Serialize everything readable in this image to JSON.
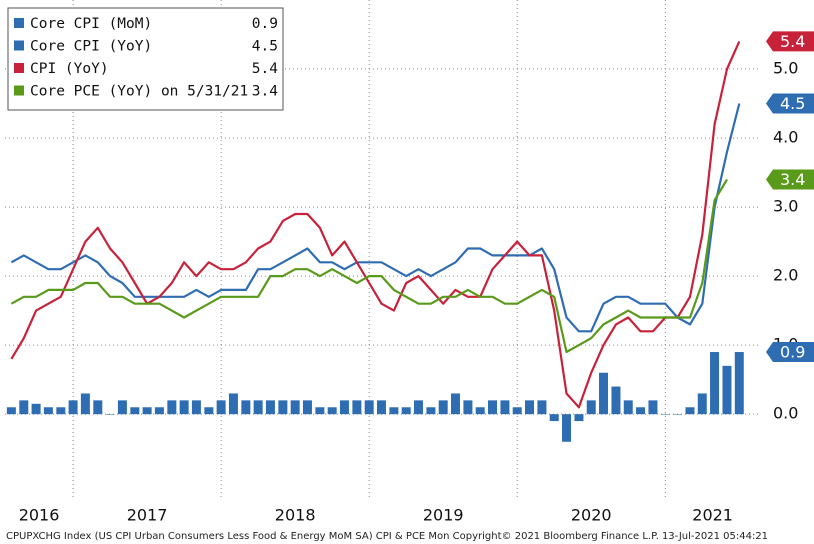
{
  "chart_data": {
    "type": "line",
    "footer": "CPUPXCHG Index (US CPI Urban Consumers Less Food & Energy MoM SA) CPI & PCE  Mon  Copyright© 2021 Bloomberg Finance L.P.  13-Jul-2021 05:44:21",
    "xlim": [
      2016.54,
      2021.64
    ],
    "xticks": [
      2016,
      2017,
      2018,
      2019,
      2020,
      2021
    ],
    "ylim": [
      -1.2,
      6.0
    ],
    "yticks": [
      {
        "value": 0,
        "label": "0.0"
      },
      {
        "value": 1,
        "label": "1.0"
      },
      {
        "value": 2,
        "label": "2.0"
      },
      {
        "value": 3,
        "label": "3.0"
      },
      {
        "value": 4,
        "label": "4.0"
      },
      {
        "value": 5,
        "label": "5.0"
      }
    ],
    "grid": true,
    "legend": "upper left",
    "x": [
      2016.583,
      2016.667,
      2016.75,
      2016.833,
      2016.917,
      2017.0,
      2017.083,
      2017.167,
      2017.25,
      2017.333,
      2017.417,
      2017.5,
      2017.583,
      2017.667,
      2017.75,
      2017.833,
      2017.917,
      2018.0,
      2018.083,
      2018.167,
      2018.25,
      2018.333,
      2018.417,
      2018.5,
      2018.583,
      2018.667,
      2018.75,
      2018.833,
      2018.917,
      2019.0,
      2019.083,
      2019.167,
      2019.25,
      2019.333,
      2019.417,
      2019.5,
      2019.583,
      2019.667,
      2019.75,
      2019.833,
      2019.917,
      2020.0,
      2020.083,
      2020.167,
      2020.25,
      2020.333,
      2020.417,
      2020.5,
      2020.583,
      2020.667,
      2020.75,
      2020.833,
      2020.917,
      2021.0,
      2021.083,
      2021.167,
      2021.25,
      2021.333,
      2021.417,
      2021.5
    ],
    "series": [
      {
        "name": "Core CPI (MoM)",
        "type": "bar",
        "color": "#2f6db3",
        "last_value": 0.9,
        "values": [
          0.1,
          0.2,
          0.15,
          0.1,
          0.1,
          0.2,
          0.3,
          0.2,
          0.0,
          0.2,
          0.1,
          0.1,
          0.1,
          0.2,
          0.2,
          0.2,
          0.1,
          0.2,
          0.3,
          0.2,
          0.2,
          0.2,
          0.2,
          0.2,
          0.2,
          0.1,
          0.1,
          0.2,
          0.2,
          0.2,
          0.2,
          0.1,
          0.1,
          0.2,
          0.1,
          0.2,
          0.3,
          0.2,
          0.1,
          0.2,
          0.2,
          0.1,
          0.2,
          0.2,
          -0.1,
          -0.4,
          -0.1,
          0.2,
          0.6,
          0.4,
          0.2,
          0.1,
          0.2,
          0.0,
          0.0,
          0.1,
          0.3,
          0.9,
          0.7,
          0.9
        ]
      },
      {
        "name": "Core CPI (YoY)",
        "type": "line",
        "color": "#2f6db3",
        "last_value": 4.5,
        "values": [
          2.2,
          2.3,
          2.2,
          2.1,
          2.1,
          2.2,
          2.3,
          2.2,
          2.0,
          1.9,
          1.7,
          1.7,
          1.7,
          1.7,
          1.7,
          1.8,
          1.7,
          1.8,
          1.8,
          1.8,
          2.1,
          2.1,
          2.2,
          2.3,
          2.4,
          2.2,
          2.2,
          2.1,
          2.2,
          2.2,
          2.2,
          2.1,
          2.0,
          2.1,
          2.0,
          2.1,
          2.2,
          2.4,
          2.4,
          2.3,
          2.3,
          2.3,
          2.3,
          2.4,
          2.1,
          1.4,
          1.2,
          1.2,
          1.6,
          1.7,
          1.7,
          1.6,
          1.6,
          1.6,
          1.4,
          1.3,
          1.6,
          3.0,
          3.8,
          4.5
        ]
      },
      {
        "name": "CPI (YoY)",
        "type": "line",
        "color": "#c8213a",
        "last_value": 5.4,
        "values": [
          0.8,
          1.1,
          1.5,
          1.6,
          1.7,
          2.1,
          2.5,
          2.7,
          2.4,
          2.2,
          1.9,
          1.6,
          1.7,
          1.9,
          2.2,
          2.0,
          2.2,
          2.1,
          2.1,
          2.2,
          2.4,
          2.5,
          2.8,
          2.9,
          2.9,
          2.7,
          2.3,
          2.5,
          2.2,
          1.9,
          1.6,
          1.5,
          1.9,
          2.0,
          1.8,
          1.6,
          1.8,
          1.7,
          1.7,
          2.1,
          2.3,
          2.5,
          2.3,
          2.3,
          1.5,
          0.3,
          0.1,
          0.6,
          1.0,
          1.3,
          1.4,
          1.2,
          1.2,
          1.4,
          1.4,
          1.7,
          2.6,
          4.2,
          5.0,
          5.4
        ]
      },
      {
        "name": "Core PCE (YoY) on 5/31/21",
        "type": "line",
        "color": "#5a9a1a",
        "last_value": 3.4,
        "values": [
          1.6,
          1.7,
          1.7,
          1.8,
          1.8,
          1.8,
          1.9,
          1.9,
          1.7,
          1.7,
          1.6,
          1.6,
          1.6,
          1.5,
          1.4,
          1.5,
          1.6,
          1.7,
          1.7,
          1.7,
          1.7,
          2.0,
          2.0,
          2.1,
          2.1,
          2.0,
          2.1,
          2.0,
          1.9,
          2.0,
          2.0,
          1.8,
          1.7,
          1.6,
          1.6,
          1.7,
          1.7,
          1.8,
          1.7,
          1.7,
          1.6,
          1.6,
          1.7,
          1.8,
          1.7,
          0.9,
          1.0,
          1.1,
          1.3,
          1.4,
          1.5,
          1.4,
          1.4,
          1.4,
          1.4,
          1.4,
          1.9,
          3.1,
          3.4,
          null
        ]
      }
    ]
  }
}
